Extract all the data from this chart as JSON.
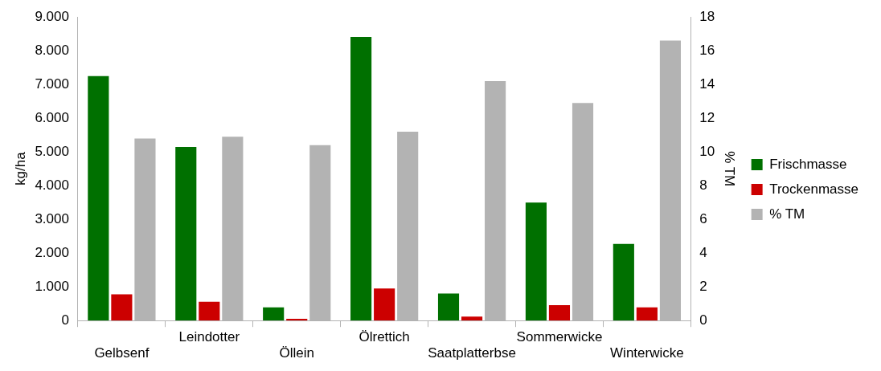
{
  "chart_data": {
    "type": "bar",
    "ylabel": "kg/ha",
    "y2label": "% TM",
    "categories": [
      "Gelbsenf",
      "Leindotter",
      "Öllein",
      "Ölrettich",
      "Saatplatterbse",
      "Sommerwicke",
      "Winterwicke"
    ],
    "series": [
      {
        "name": "Frischmasse",
        "color": "#007000",
        "values": [
          7250,
          5150,
          390,
          8410,
          800,
          3500,
          2270
        ]
      },
      {
        "name": "Trockenmasse",
        "color": "#cc0000",
        "values": [
          780,
          560,
          50,
          950,
          120,
          460,
          390
        ]
      },
      {
        "name": "% TM",
        "color": "#b3b3b3",
        "axis": "y2",
        "values": [
          10.8,
          10.9,
          10.4,
          11.2,
          14.2,
          12.9,
          16.6
        ]
      }
    ],
    "ylim": [
      0,
      9000
    ],
    "yticks": [
      {
        "value": 0,
        "label": "0"
      },
      {
        "value": 1000,
        "label": "1.000"
      },
      {
        "value": 2000,
        "label": "2.000"
      },
      {
        "value": 3000,
        "label": "3.000"
      },
      {
        "value": 4000,
        "label": "4.000"
      },
      {
        "value": 5000,
        "label": "5.000"
      },
      {
        "value": 6000,
        "label": "6.000"
      },
      {
        "value": 7000,
        "label": "7.000"
      },
      {
        "value": 8000,
        "label": "8.000"
      },
      {
        "value": 9000,
        "label": "9.000"
      }
    ],
    "y2lim": [
      0,
      18
    ],
    "y2ticks": [
      0,
      2,
      4,
      6,
      8,
      10,
      12,
      14,
      16,
      18
    ],
    "grid": false,
    "legend": "right"
  }
}
